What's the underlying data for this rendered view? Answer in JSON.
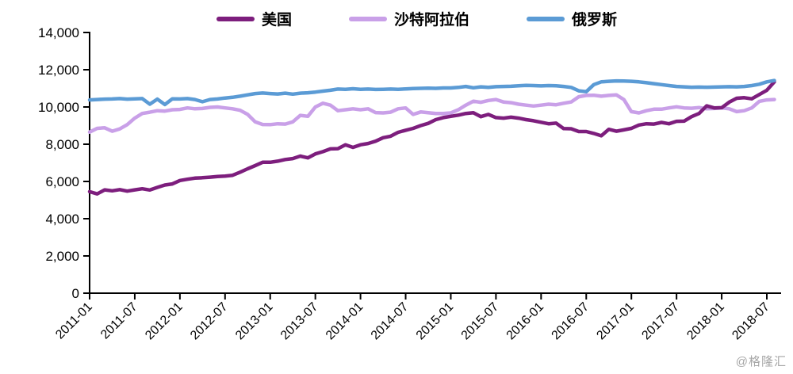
{
  "legend": {
    "items": [
      {
        "id": "usa",
        "label": "美国",
        "color": "#7D1E7D"
      },
      {
        "id": "saudi",
        "label": "沙特阿拉伯",
        "color": "#C9A0E8"
      },
      {
        "id": "russia",
        "label": "俄罗斯",
        "color": "#5B9BD5"
      }
    ]
  },
  "watermark": "@格隆汇",
  "axis": {
    "color": "#000000"
  },
  "chart_data": {
    "type": "line",
    "title": "",
    "xlabel": "",
    "ylabel": "",
    "x_start": "2011-01",
    "x_frequency": "monthly",
    "x_tick_labels": [
      "2011-01",
      "2011-07",
      "2012-01",
      "2012-07",
      "2013-01",
      "2013-07",
      "2014-01",
      "2014-07",
      "2015-01",
      "2015-07",
      "2016-01",
      "2016-07",
      "2017-01",
      "2017-07",
      "2018-01",
      "2018-07"
    ],
    "ylim": [
      0,
      14000
    ],
    "ytick_step": 2000,
    "yticks": [
      0,
      2000,
      4000,
      6000,
      8000,
      10000,
      12000,
      14000
    ],
    "grid": false,
    "legend_position": "top",
    "series": [
      {
        "id": "saudi",
        "name": "沙特阿拉伯",
        "color": "#C9A0E8",
        "values": [
          8650,
          8850,
          8880,
          8700,
          8820,
          9050,
          9400,
          9650,
          9720,
          9800,
          9780,
          9850,
          9870,
          9950,
          9900,
          9920,
          9980,
          10000,
          9950,
          9900,
          9820,
          9600,
          9200,
          9060,
          9050,
          9100,
          9080,
          9200,
          9550,
          9500,
          10000,
          10200,
          10100,
          9800,
          9850,
          9900,
          9850,
          9900,
          9700,
          9680,
          9720,
          9900,
          9950,
          9600,
          9730,
          9690,
          9650,
          9650,
          9680,
          9850,
          10100,
          10310,
          10250,
          10350,
          10400,
          10270,
          10230,
          10150,
          10100,
          10050,
          10100,
          10150,
          10120,
          10200,
          10270,
          10550,
          10620,
          10630,
          10580,
          10620,
          10650,
          10400,
          9750,
          9680,
          9800,
          9880,
          9880,
          9950,
          10010,
          9950,
          9930,
          9970,
          9900,
          9920,
          9950,
          9900,
          9750,
          9800,
          9950,
          10300,
          10380,
          10400
        ]
      },
      {
        "id": "usa",
        "name": "美国",
        "color": "#7D1E7D",
        "values": [
          5450,
          5330,
          5550,
          5500,
          5560,
          5480,
          5550,
          5610,
          5540,
          5680,
          5810,
          5870,
          6050,
          6120,
          6180,
          6200,
          6230,
          6270,
          6290,
          6330,
          6500,
          6680,
          6850,
          7030,
          7030,
          7090,
          7180,
          7230,
          7360,
          7270,
          7480,
          7600,
          7750,
          7760,
          7970,
          7830,
          7970,
          8040,
          8160,
          8350,
          8430,
          8640,
          8750,
          8850,
          9000,
          9120,
          9320,
          9430,
          9500,
          9560,
          9650,
          9690,
          9480,
          9600,
          9430,
          9400,
          9450,
          9400,
          9320,
          9260,
          9180,
          9100,
          9130,
          8840,
          8830,
          8680,
          8680,
          8580,
          8450,
          8800,
          8700,
          8770,
          8850,
          9030,
          9100,
          9080,
          9170,
          9100,
          9230,
          9240,
          9480,
          9650,
          10060,
          9950,
          9960,
          10260,
          10470,
          10500,
          10440,
          10670,
          10900,
          11350
        ]
      },
      {
        "id": "russia",
        "name": "俄罗斯",
        "color": "#5B9BD5",
        "values": [
          10380,
          10400,
          10420,
          10430,
          10450,
          10420,
          10440,
          10450,
          10150,
          10420,
          10130,
          10440,
          10430,
          10450,
          10400,
          10280,
          10400,
          10430,
          10480,
          10520,
          10580,
          10650,
          10720,
          10750,
          10720,
          10700,
          10740,
          10690,
          10740,
          10760,
          10800,
          10850,
          10900,
          10960,
          10950,
          10980,
          10950,
          10960,
          10940,
          10950,
          10960,
          10950,
          10970,
          10990,
          11000,
          11010,
          11000,
          11020,
          11020,
          11050,
          11100,
          11030,
          11080,
          11050,
          11090,
          11100,
          11110,
          11140,
          11160,
          11150,
          11130,
          11150,
          11140,
          11100,
          11050,
          10870,
          10820,
          11200,
          11350,
          11380,
          11400,
          11390,
          11380,
          11350,
          11300,
          11250,
          11200,
          11150,
          11100,
          11080,
          11060,
          11070,
          11060,
          11070,
          11080,
          11090,
          11080,
          11100,
          11150,
          11220,
          11350,
          11420
        ]
      }
    ]
  }
}
